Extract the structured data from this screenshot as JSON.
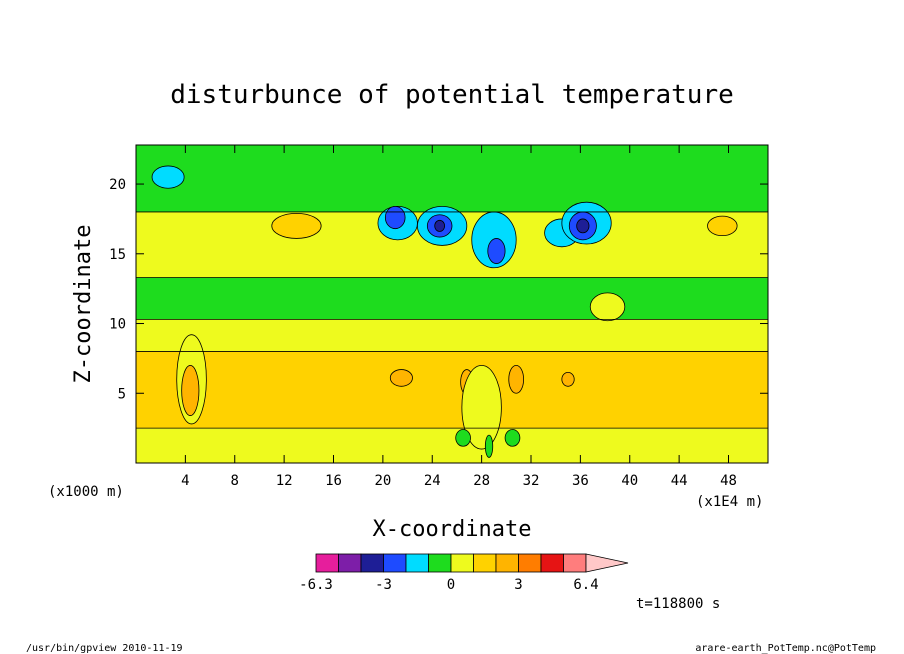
{
  "chart_data": {
    "type": "heatmap",
    "title": "disturbunce of potential temperature",
    "xlabel": "X-coordinate",
    "ylabel": "Z-coordinate",
    "x_unit": "(x1E4 m)",
    "y_unit": "(x1000 m)",
    "xlim": [
      0,
      51.2
    ],
    "ylim": [
      0,
      22.8
    ],
    "x_ticks": [
      4,
      8,
      12,
      16,
      20,
      24,
      28,
      32,
      36,
      40,
      44,
      48
    ],
    "x_tick_labels": [
      "4",
      "8",
      "12",
      "16",
      "20",
      "24",
      "28",
      "32",
      "36",
      "40",
      "44",
      "48"
    ],
    "y_ticks": [
      5,
      10,
      15,
      20
    ],
    "y_tick_labels": [
      "5",
      "10",
      "15",
      "20"
    ],
    "colorbar": {
      "tick_labels": [
        "-6.3",
        "-3",
        "0",
        "3",
        "6.4"
      ],
      "colors": [
        "#e61e9c",
        "#7d1ea8",
        "#1e1e96",
        "#1e4bff",
        "#00dcff",
        "#1edc1e",
        "#eefa1e",
        "#ffd200",
        "#ffb400",
        "#ff7d00",
        "#e61414",
        "#ff7d7d",
        "#ffc8c8"
      ],
      "extend": "max"
    },
    "contour_levels": [
      -3,
      -2,
      -1,
      0,
      1,
      2,
      3
    ],
    "colors": {
      "neg3": "#1e1e96",
      "neg2": "#1e4bff",
      "neg1": "#00dcff",
      "zero": "#1edc1e",
      "pos1": "#eefa1e",
      "pos2": "#ffd200",
      "pos3": "#ffb400"
    },
    "bands": [
      {
        "level": "pos1",
        "z": [
          0.0,
          2.5
        ]
      },
      {
        "level": "pos2",
        "z": [
          2.5,
          8.0
        ]
      },
      {
        "level": "pos1",
        "z": [
          8.0,
          10.3
        ]
      },
      {
        "level": "zero",
        "z": [
          10.3,
          13.3
        ]
      },
      {
        "level": "pos1",
        "z": [
          13.3,
          18.0
        ]
      },
      {
        "level": "zero",
        "z": [
          18.0,
          22.8
        ]
      }
    ],
    "anomalies": [
      {
        "level": "neg1",
        "x": 2.6,
        "z": 20.5,
        "rx": 1.3,
        "rz": 0.8
      },
      {
        "level": "pos2",
        "x": 13.0,
        "z": 17.0,
        "rx": 2.0,
        "rz": 0.9
      },
      {
        "level": "neg1",
        "x": 21.2,
        "z": 17.2,
        "rx": 1.6,
        "rz": 1.2
      },
      {
        "level": "neg2",
        "x": 21.0,
        "z": 17.6,
        "rx": 0.8,
        "rz": 0.8
      },
      {
        "level": "neg1",
        "x": 24.8,
        "z": 17.0,
        "rx": 2.0,
        "rz": 1.4
      },
      {
        "level": "neg2",
        "x": 24.6,
        "z": 17.0,
        "rx": 1.0,
        "rz": 0.8
      },
      {
        "level": "neg3",
        "x": 24.6,
        "z": 17.0,
        "rx": 0.4,
        "rz": 0.4
      },
      {
        "level": "neg1",
        "x": 29.0,
        "z": 16.0,
        "rx": 1.8,
        "rz": 2.0
      },
      {
        "level": "neg2",
        "x": 29.2,
        "z": 15.2,
        "rx": 0.7,
        "rz": 0.9
      },
      {
        "level": "neg1",
        "x": 34.5,
        "z": 16.5,
        "rx": 1.4,
        "rz": 1.0
      },
      {
        "level": "neg1",
        "x": 36.5,
        "z": 17.2,
        "rx": 2.0,
        "rz": 1.5
      },
      {
        "level": "neg2",
        "x": 36.2,
        "z": 17.0,
        "rx": 1.1,
        "rz": 1.0
      },
      {
        "level": "neg3",
        "x": 36.2,
        "z": 17.0,
        "rx": 0.5,
        "rz": 0.5
      },
      {
        "level": "pos2",
        "x": 47.5,
        "z": 17.0,
        "rx": 1.2,
        "rz": 0.7
      },
      {
        "level": "pos1",
        "x": 38.2,
        "z": 11.2,
        "rx": 1.4,
        "rz": 1.0
      },
      {
        "level": "pos1",
        "x": 4.5,
        "z": 6.0,
        "rx": 1.2,
        "rz": 3.2
      },
      {
        "level": "pos3",
        "x": 4.4,
        "z": 5.2,
        "rx": 0.7,
        "rz": 1.8
      },
      {
        "level": "pos3",
        "x": 21.5,
        "z": 6.1,
        "rx": 0.9,
        "rz": 0.6
      },
      {
        "level": "pos3",
        "x": 26.8,
        "z": 5.8,
        "rx": 0.5,
        "rz": 0.9
      },
      {
        "level": "pos3",
        "x": 30.8,
        "z": 6.0,
        "rx": 0.6,
        "rz": 1.0
      },
      {
        "level": "pos3",
        "x": 35.0,
        "z": 6.0,
        "rx": 0.5,
        "rz": 0.5
      },
      {
        "level": "pos1",
        "x": 28.0,
        "z": 4.0,
        "rx": 1.6,
        "rz": 3.0
      },
      {
        "level": "zero",
        "x": 26.5,
        "z": 1.8,
        "rx": 0.6,
        "rz": 0.6
      },
      {
        "level": "zero",
        "x": 30.5,
        "z": 1.8,
        "rx": 0.6,
        "rz": 0.6
      },
      {
        "level": "zero",
        "x": 28.6,
        "z": 1.2,
        "rx": 0.3,
        "rz": 0.8
      }
    ],
    "legend": "bottom-center"
  },
  "annotations": {
    "time": "t=118800 s",
    "footer_left": "/usr/bin/gpview   2010-11-19",
    "footer_right": "arare-earth_PotTemp.nc@PotTemp"
  }
}
